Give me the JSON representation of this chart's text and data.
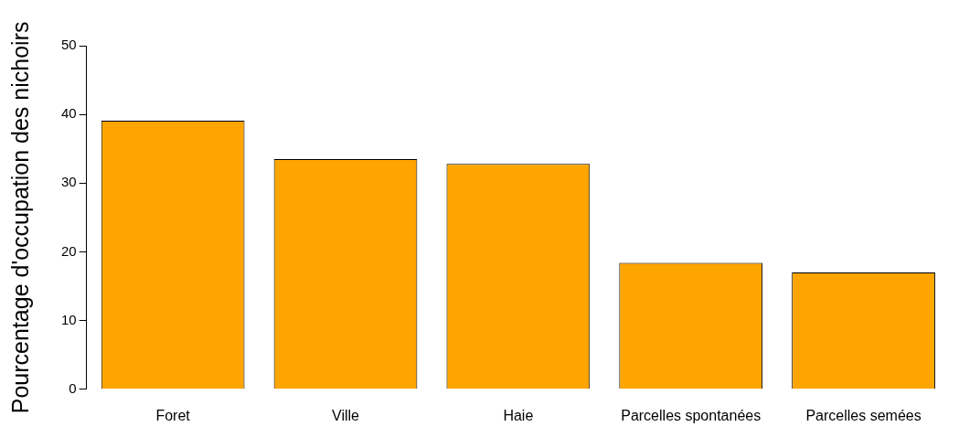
{
  "chart_data": {
    "type": "bar",
    "ylabel": "Pourcentage d'occupation des nichoirs",
    "categories": [
      "Foret",
      "Ville",
      "Haie",
      "Parcelles spontanées",
      "Parcelles semées"
    ],
    "values": [
      39.1,
      33.5,
      32.8,
      18.4,
      17.0
    ],
    "color": "#ffa500",
    "ylim": [
      0,
      50
    ],
    "yticks": [
      0,
      10,
      20,
      30,
      40,
      50
    ],
    "grid": false,
    "legend": false
  }
}
